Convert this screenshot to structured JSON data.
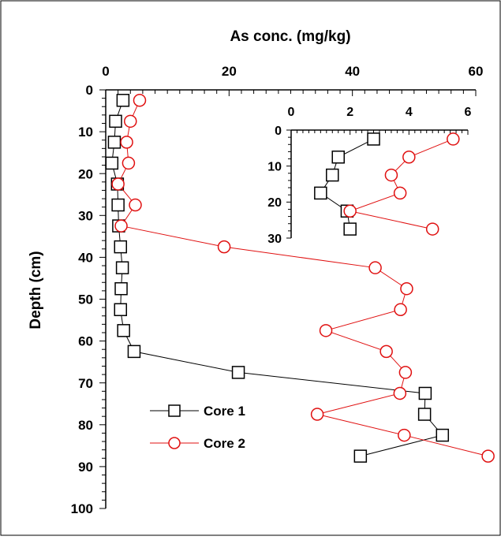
{
  "chart_data": [
    {
      "type": "line",
      "title": "",
      "xlabel": "As conc. (mg/kg)",
      "ylabel": "Depth (cm)",
      "xlim": [
        0,
        60
      ],
      "ylim": [
        0,
        100
      ],
      "y_inverted": true,
      "x_axis_position": "top",
      "x_ticks": [
        0,
        20,
        40,
        60
      ],
      "y_ticks": [
        0,
        10,
        20,
        30,
        40,
        50,
        60,
        70,
        80,
        90,
        100
      ],
      "x_tick_labels": [
        "0",
        "20",
        "40",
        "60"
      ],
      "y_tick_labels": [
        "0",
        "10",
        "20",
        "30",
        "40",
        "50",
        "60",
        "70",
        "80",
        "90",
        "100"
      ],
      "grid": false,
      "legend": "lower-left",
      "series": [
        {
          "name": "Core 1",
          "color": "#000000",
          "marker": "square",
          "points": [
            {
              "x": 2.8,
              "y": 2.5
            },
            {
              "x": 1.6,
              "y": 7.5
            },
            {
              "x": 1.4,
              "y": 12.5
            },
            {
              "x": 1.0,
              "y": 17.5
            },
            {
              "x": 1.9,
              "y": 22.5
            },
            {
              "x": 2.0,
              "y": 27.5
            },
            {
              "x": 2.1,
              "y": 32.5
            },
            {
              "x": 2.4,
              "y": 37.5
            },
            {
              "x": 2.7,
              "y": 42.5
            },
            {
              "x": 2.5,
              "y": 47.5
            },
            {
              "x": 2.4,
              "y": 52.5
            },
            {
              "x": 2.9,
              "y": 57.5
            },
            {
              "x": 4.6,
              "y": 62.5
            },
            {
              "x": 21.5,
              "y": 67.5
            },
            {
              "x": 51.8,
              "y": 72.5
            },
            {
              "x": 51.7,
              "y": 77.5
            },
            {
              "x": 54.6,
              "y": 82.5
            },
            {
              "x": 41.3,
              "y": 87.5
            }
          ]
        },
        {
          "name": "Core 2",
          "color": "#e01010",
          "marker": "circle",
          "points": [
            {
              "x": 5.5,
              "y": 2.5
            },
            {
              "x": 4.0,
              "y": 7.5
            },
            {
              "x": 3.4,
              "y": 12.5
            },
            {
              "x": 3.7,
              "y": 17.5
            },
            {
              "x": 2.0,
              "y": 22.5
            },
            {
              "x": 4.8,
              "y": 27.5
            },
            {
              "x": 2.5,
              "y": 32.5
            },
            {
              "x": 19.2,
              "y": 37.5
            },
            {
              "x": 43.7,
              "y": 42.5
            },
            {
              "x": 48.8,
              "y": 47.5
            },
            {
              "x": 47.8,
              "y": 52.5
            },
            {
              "x": 35.7,
              "y": 57.5
            },
            {
              "x": 45.5,
              "y": 62.5
            },
            {
              "x": 48.6,
              "y": 67.5
            },
            {
              "x": 47.7,
              "y": 72.5
            },
            {
              "x": 34.3,
              "y": 77.5
            },
            {
              "x": 48.4,
              "y": 82.5
            },
            {
              "x": 62.0,
              "y": 87.5
            }
          ]
        }
      ]
    },
    {
      "type": "line",
      "title": "",
      "xlabel": "",
      "ylabel": "",
      "xlim": [
        0,
        6
      ],
      "ylim": [
        0,
        30
      ],
      "y_inverted": true,
      "x_axis_position": "top",
      "x_ticks": [
        0,
        2,
        4,
        6
      ],
      "y_ticks": [
        0,
        10,
        20,
        30
      ],
      "x_tick_labels": [
        "0",
        "2",
        "4",
        "6"
      ],
      "y_tick_labels": [
        "0",
        "10",
        "20",
        "30"
      ],
      "grid": false,
      "series": [
        {
          "color": "#000000",
          "marker": "square",
          "points": [
            {
              "x": 2.8,
              "y": 2.5
            },
            {
              "x": 1.6,
              "y": 7.5
            },
            {
              "x": 1.4,
              "y": 12.5
            },
            {
              "x": 1.0,
              "y": 17.5
            },
            {
              "x": 1.9,
              "y": 22.5
            },
            {
              "x": 2.0,
              "y": 27.5
            }
          ]
        },
        {
          "color": "#e01010",
          "marker": "circle",
          "points": [
            {
              "x": 5.5,
              "y": 2.5
            },
            {
              "x": 4.0,
              "y": 7.5
            },
            {
              "x": 3.4,
              "y": 12.5
            },
            {
              "x": 3.7,
              "y": 17.5
            },
            {
              "x": 2.0,
              "y": 22.5
            },
            {
              "x": 4.8,
              "y": 27.5
            }
          ]
        }
      ]
    }
  ]
}
